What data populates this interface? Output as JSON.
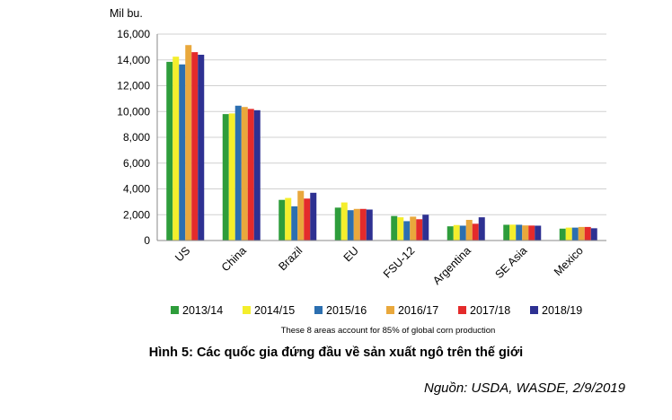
{
  "chart_data": {
    "type": "bar",
    "ylabel": "Mil bu.",
    "ylim": [
      0,
      16000
    ],
    "yticks": [
      "0",
      "2,000",
      "4,000",
      "6,000",
      "8,000",
      "10,000",
      "12,000",
      "14,000",
      "16,000"
    ],
    "categories": [
      "US",
      "China",
      "Brazil",
      "EU",
      "FSU-12",
      "Argentina",
      "SE Asia",
      "Mexico"
    ],
    "series": [
      {
        "name": "2013/14",
        "color": "#2e9d3b",
        "values": [
          13850,
          9800,
          3150,
          2550,
          1900,
          1100,
          1220,
          920
        ]
      },
      {
        "name": "2014/15",
        "color": "#f4ee2c",
        "values": [
          14250,
          9850,
          3300,
          2950,
          1800,
          1200,
          1230,
          1000
        ]
      },
      {
        "name": "2015/16",
        "color": "#2c6fb0",
        "values": [
          13650,
          10450,
          2650,
          2350,
          1500,
          1150,
          1220,
          1000
        ]
      },
      {
        "name": "2016/17",
        "color": "#e9a83c",
        "values": [
          15150,
          10350,
          3850,
          2450,
          1850,
          1600,
          1170,
          1050
        ]
      },
      {
        "name": "2017/18",
        "color": "#e42b2b",
        "values": [
          14600,
          10200,
          3250,
          2450,
          1650,
          1300,
          1160,
          1050
        ]
      },
      {
        "name": "2018/19",
        "color": "#2e3192",
        "values": [
          14400,
          10100,
          3700,
          2400,
          2000,
          1800,
          1150,
          950
        ]
      }
    ],
    "note": "These 8 areas account for 85% of global corn production"
  },
  "caption": "Hình 5: Các quốc gia đứng đầu về sản xuất ngô trên thế giới",
  "source": "Nguồn: USDA, WASDE, 2/9/2019"
}
